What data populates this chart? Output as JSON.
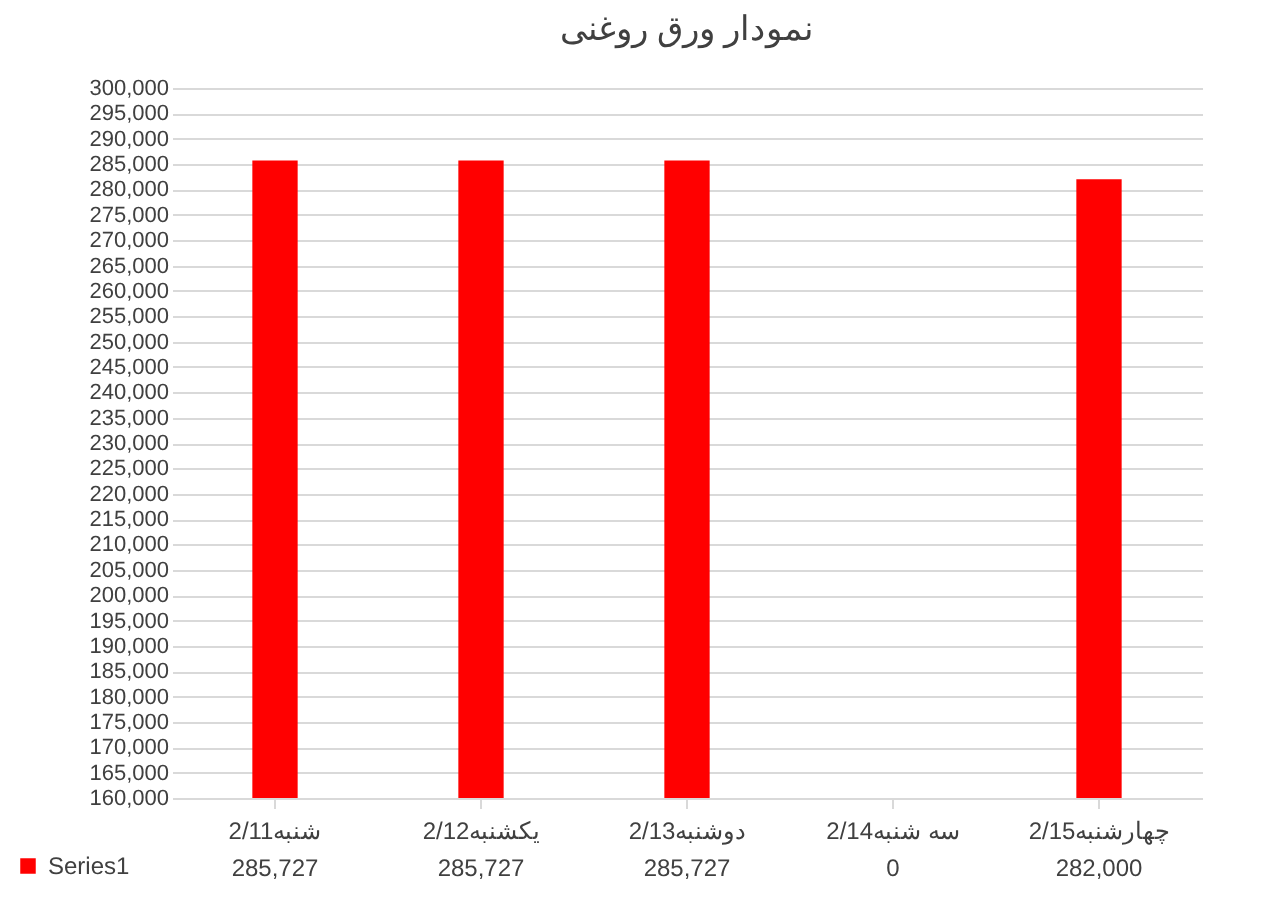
{
  "chart_data": {
    "type": "bar",
    "title": "نمودار ورق روغنی",
    "categories": [
      "2/11شنبه",
      "2/12یکشنبه",
      "2/13دوشنبه",
      "2/14سه شنبه",
      "2/15چهارشنبه"
    ],
    "series": [
      {
        "name": "Series1",
        "color": "#ff0000",
        "values": [
          285727,
          285727,
          285727,
          null,
          282000
        ],
        "value_labels": [
          "285,727",
          "285,727",
          "285,727",
          "0",
          "282,000"
        ]
      }
    ],
    "ylim": [
      160000,
      300000
    ],
    "yticks": [
      {
        "value": 160000,
        "label": "160,000"
      },
      {
        "value": 165000,
        "label": "165,000"
      },
      {
        "value": 170000,
        "label": "170,000"
      },
      {
        "value": 175000,
        "label": "175,000"
      },
      {
        "value": 180000,
        "label": "180,000"
      },
      {
        "value": 185000,
        "label": "185,000"
      },
      {
        "value": 190000,
        "label": "190,000"
      },
      {
        "value": 195000,
        "label": "195,000"
      },
      {
        "value": 200000,
        "label": "200,000"
      },
      {
        "value": 205000,
        "label": "205,000"
      },
      {
        "value": 210000,
        "label": "210,000"
      },
      {
        "value": 215000,
        "label": "215,000"
      },
      {
        "value": 220000,
        "label": "220,000"
      },
      {
        "value": 225000,
        "label": "225,000"
      },
      {
        "value": 230000,
        "label": "230,000"
      },
      {
        "value": 235000,
        "label": "235,000"
      },
      {
        "value": 240000,
        "label": "240,000"
      },
      {
        "value": 245000,
        "label": "245,000"
      },
      {
        "value": 250000,
        "label": "250,000"
      },
      {
        "value": 255000,
        "label": "255,000"
      },
      {
        "value": 260000,
        "label": "260,000"
      },
      {
        "value": 265000,
        "label": "265,000"
      },
      {
        "value": 270000,
        "label": "270,000"
      },
      {
        "value": 275000,
        "label": "275,000"
      },
      {
        "value": 280000,
        "label": "280,000"
      },
      {
        "value": 285000,
        "label": "285,000"
      },
      {
        "value": 290000,
        "label": "290,000"
      },
      {
        "value": 295000,
        "label": "295,000"
      },
      {
        "value": 300000,
        "label": "300,000"
      }
    ],
    "grid": "y",
    "legend": "bottom left"
  }
}
